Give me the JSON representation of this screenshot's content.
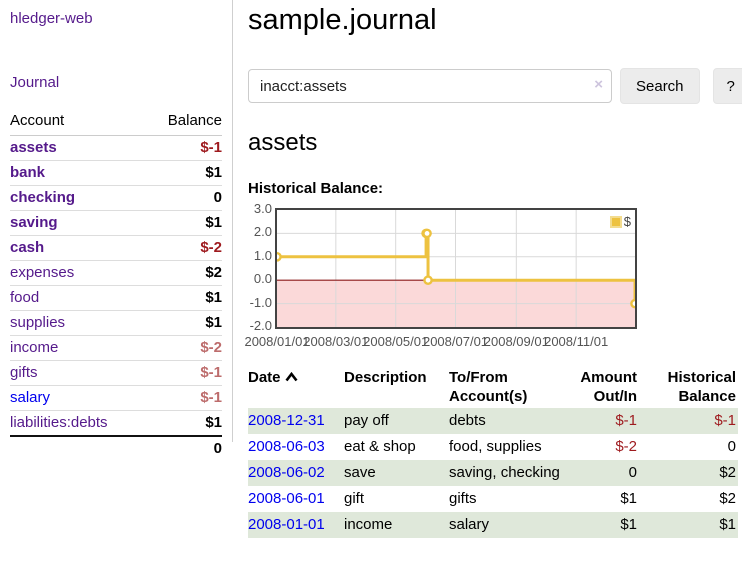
{
  "app": {
    "brand": "hledger-web"
  },
  "colors": {
    "link_visited": "#551a8b",
    "link_unvisited": "#0000ee",
    "negative_strong": "#9e1a1e",
    "negative_soft": "#bd6c6c",
    "row_stripe_green": "#dfe8da",
    "chart_line": "#edc240",
    "chart_negative_fill": "#fbd9d9",
    "chart_zero_line": "#8b1a1a",
    "chart_border": "#434343",
    "grid_line": "#d9d9d9"
  },
  "sidebar": {
    "journal_label": "Journal",
    "accounts_table": {
      "headers": [
        "Account",
        "Balance"
      ],
      "rows": [
        {
          "label": "assets",
          "balance": "$-1",
          "depth": 1,
          "bold": true,
          "unvisited": false
        },
        {
          "label": "bank",
          "balance": "$1",
          "depth": 2,
          "bold": true,
          "unvisited": false
        },
        {
          "label": "checking",
          "balance": "0",
          "depth": 3,
          "bold": true,
          "unvisited": false
        },
        {
          "label": "saving",
          "balance": "$1",
          "depth": 3,
          "bold": true,
          "unvisited": false
        },
        {
          "label": "cash",
          "balance": "$-2",
          "depth": 2,
          "bold": true,
          "unvisited": false
        },
        {
          "label": "expenses",
          "balance": "$2",
          "depth": 1,
          "bold": false,
          "unvisited": false
        },
        {
          "label": "food",
          "balance": "$1",
          "depth": 2,
          "bold": false,
          "unvisited": false
        },
        {
          "label": "supplies",
          "balance": "$1",
          "depth": 2,
          "bold": false,
          "unvisited": false
        },
        {
          "label": "income",
          "balance": "$-2",
          "depth": 1,
          "bold": false,
          "unvisited": false
        },
        {
          "label": "gifts",
          "balance": "$-1",
          "depth": 2,
          "bold": false,
          "unvisited": false
        },
        {
          "label": "salary",
          "balance": "$-1",
          "depth": 2,
          "bold": false,
          "unvisited": true
        },
        {
          "label": "liabilities:debts",
          "balance": "$1",
          "depth": 1,
          "bold": false,
          "unvisited": false
        }
      ],
      "total": "0"
    }
  },
  "main": {
    "title": "sample.journal",
    "search": {
      "value": "inacct:assets",
      "clear_icon": "×",
      "button_label": "Search",
      "help_label": "?"
    },
    "account_heading": "assets",
    "transactions": {
      "headers": [
        "Date",
        "Description",
        "To/From Account(s)",
        "Amount Out/In",
        "Historical Balance"
      ],
      "rows": [
        {
          "date": "2008-12-31",
          "description": "pay off",
          "accounts": "debts",
          "amount": "$-1",
          "balance": "$-1"
        },
        {
          "date": "2008-06-03",
          "description": "eat & shop",
          "accounts": "food, supplies",
          "amount": "$-2",
          "balance": "0"
        },
        {
          "date": "2008-06-02",
          "description": "save",
          "accounts": "saving, checking",
          "amount": "0",
          "balance": "$2"
        },
        {
          "date": "2008-06-01",
          "description": "gift",
          "accounts": "gifts",
          "amount": "$1",
          "balance": "$2"
        },
        {
          "date": "2008-01-01",
          "description": "income",
          "accounts": "salary",
          "amount": "$1",
          "balance": "$1"
        }
      ]
    }
  },
  "chart_data": {
    "type": "line",
    "title": "Historical Balance:",
    "step": true,
    "series": [
      {
        "name": "$",
        "points": [
          {
            "x": "2008/01/01",
            "y": 1
          },
          {
            "x": "2008/06/01",
            "y": 2
          },
          {
            "x": "2008/06/02",
            "y": 2
          },
          {
            "x": "2008/06/03",
            "y": 0
          },
          {
            "x": "2008/12/31",
            "y": -1
          }
        ]
      }
    ],
    "x_range": [
      "2008/01/01",
      "2008/12/31"
    ],
    "x_ticks": [
      "2008/01/01",
      "2008/03/01",
      "2008/05/01",
      "2008/07/01",
      "2008/09/01",
      "2008/11/01"
    ],
    "y_tick_labels": [
      "3.0",
      "2.0",
      "1.0",
      "0.0",
      "-1.0",
      "-2.0"
    ],
    "ylim": [
      -2,
      3
    ],
    "grid": true,
    "legend_label": "$",
    "legend_position": "top-right",
    "negative_region_shaded": true
  }
}
